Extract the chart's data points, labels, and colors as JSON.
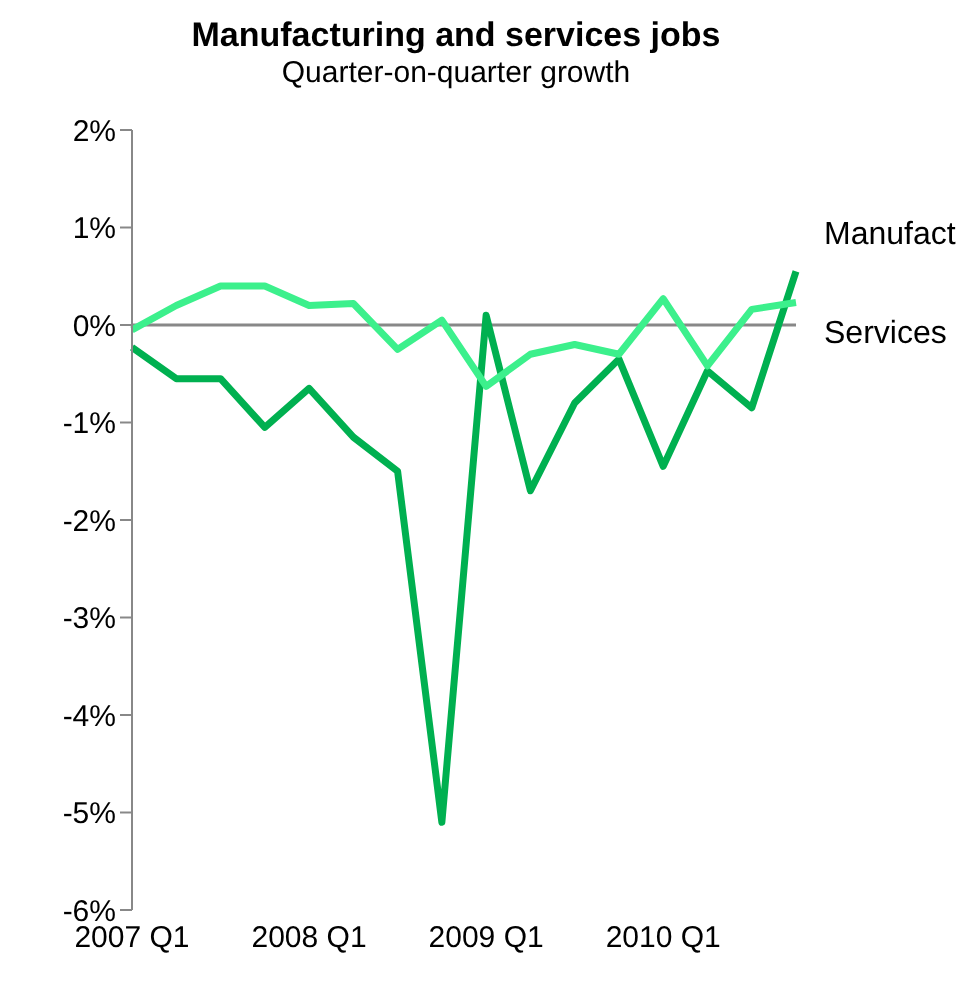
{
  "chart_data": {
    "type": "line",
    "title": "Manufacturing and services jobs",
    "subtitle": "Quarter-on-quarter growth",
    "categories": [
      "2007 Q1",
      null,
      null,
      null,
      "2008 Q1",
      null,
      null,
      null,
      "2009 Q1",
      null,
      null,
      null,
      "2010 Q1",
      null,
      null,
      null
    ],
    "series": [
      {
        "name": "Manufact",
        "color": "#00b050",
        "values": [
          -0.23,
          -0.55,
          -0.55,
          -1.05,
          -0.65,
          -1.15,
          -1.5,
          -5.1,
          0.1,
          -1.7,
          -0.8,
          -0.35,
          -1.45,
          -0.47,
          -0.85,
          0.55
        ]
      },
      {
        "name": "Services",
        "color": "#3cf08c",
        "values": [
          -0.05,
          0.2,
          0.4,
          0.4,
          0.2,
          0.22,
          -0.25,
          0.05,
          -0.63,
          -0.3,
          -0.2,
          -0.3,
          0.27,
          -0.42,
          0.16,
          0.23
        ]
      }
    ],
    "ylim": [
      -6,
      2
    ],
    "yticks": [
      {
        "value": -6,
        "label": "-6%"
      },
      {
        "value": -5,
        "label": "-5%"
      },
      {
        "value": -4,
        "label": "-4%"
      },
      {
        "value": -3,
        "label": "-3%"
      },
      {
        "value": -2,
        "label": "-2%"
      },
      {
        "value": -1,
        "label": "-1%"
      },
      {
        "value": 0,
        "label": "0%"
      },
      {
        "value": 1,
        "label": "1%"
      },
      {
        "value": 2,
        "label": "2%"
      }
    ],
    "ref_lines": [
      {
        "axis": "y",
        "value": 0,
        "color": "#888888"
      }
    ],
    "legend": false,
    "marker": "none",
    "line_style": "solid"
  }
}
